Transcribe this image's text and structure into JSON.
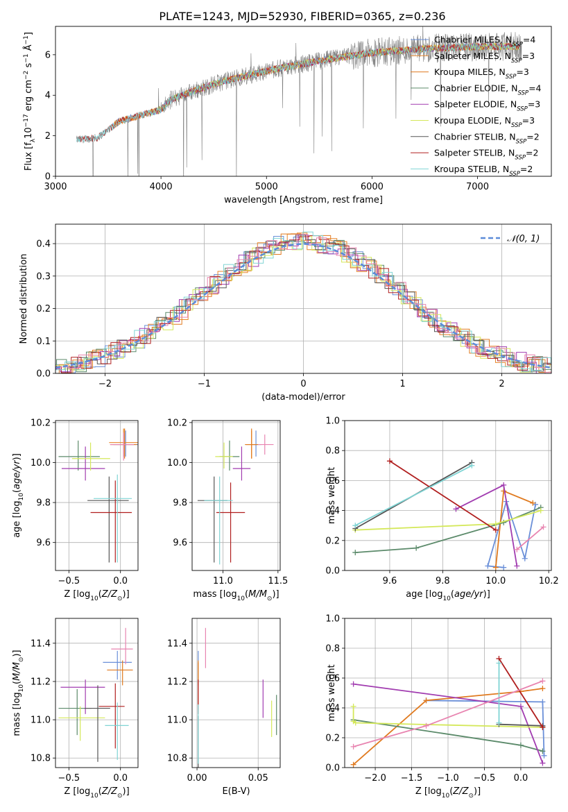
{
  "figure": {
    "title": "PLATE=1243, MJD=52930, FIBERID=0365, z=0.236"
  },
  "colors": {
    "Chabrier MILES": "#6a8fd8",
    "Salpeter MILES": "#e8862a",
    "Kroupa MILES": "#e07a1f",
    "Chabrier ELODIE": "#5b8a6a",
    "Salpeter ELODIE": "#a13cb0",
    "Kroupa ELODIE": "#d4e85a",
    "Chabrier STELIB": "#555555",
    "Salpeter STELIB": "#b01e1e",
    "Kroupa STELIB": "#7fd4d4",
    "pink": "#e884b0",
    "gaussian": "#5b8bd8"
  },
  "chart_data": [
    {
      "id": "spectrum",
      "type": "line",
      "xlabel": "wavelength [Angstrom, rest frame]",
      "ylabel": "Flux [f",
      "xlim": [
        3000,
        7700
      ],
      "ylim": [
        0,
        7.4
      ],
      "xticks": [
        3000,
        4000,
        5000,
        6000,
        7000
      ],
      "yticks": [
        0,
        2,
        4,
        6
      ],
      "legend_position": "top-right",
      "legend": [
        {
          "name": "Chabrier MILES",
          "nssp": "=4"
        },
        {
          "name": "Salpeter MILES",
          "nssp": "=3"
        },
        {
          "name": "Kroupa MILES",
          "nssp": "=3"
        },
        {
          "name": "Chabrier ELODIE",
          "nssp": "=4"
        },
        {
          "name": "Salpeter ELODIE",
          "nssp": "=3"
        },
        {
          "name": "Kroupa ELODIE",
          "nssp": "=3"
        },
        {
          "name": "Chabrier STELIB",
          "nssp": "=2"
        },
        {
          "name": "Salpeter STELIB",
          "nssp": "=2"
        },
        {
          "name": "Kroupa STELIB",
          "nssp": "=2"
        }
      ],
      "continuum": {
        "x": [
          3200,
          3400,
          3600,
          3800,
          4000,
          4100,
          4300,
          4600,
          5000,
          5500,
          6000,
          6500,
          7000,
          7400
        ],
        "y": [
          1.8,
          1.9,
          2.7,
          3.0,
          3.3,
          3.8,
          4.2,
          4.7,
          5.2,
          5.7,
          6.1,
          6.3,
          6.4,
          6.4
        ]
      }
    },
    {
      "id": "residuals",
      "type": "line",
      "xlabel": "(data-model)/error",
      "ylabel": "Normed distribution",
      "xlim": [
        -2.5,
        2.5
      ],
      "ylim": [
        0,
        0.46
      ],
      "xticks": [
        -2,
        -1,
        0,
        1,
        2
      ],
      "yticks": [
        0.0,
        0.1,
        0.2,
        0.3,
        0.4
      ],
      "legend": [
        "𝒩(0, 1)"
      ],
      "legend_position": "top-right",
      "grid": true
    },
    {
      "id": "age_vs_Z",
      "type": "scatter",
      "xlabel": "Z [log",
      "ylabel": "age  [log",
      "xlim": [
        -0.63,
        0.17
      ],
      "ylim": [
        9.46,
        10.21
      ],
      "xticks": [
        -0.5,
        0.0
      ],
      "yticks": [
        9.6,
        9.8,
        10.0,
        10.2
      ],
      "grid": true,
      "points": [
        {
          "c": "Chabrier MILES",
          "x": 0.05,
          "y": 10.09,
          "xerr": [
            0.12,
            0.14
          ],
          "yerr": [
            0.06,
            0.07
          ]
        },
        {
          "c": "Salpeter MILES",
          "x": 0.03,
          "y": 10.1,
          "xerr": [
            0.14,
            0.14
          ],
          "yerr": [
            0.07,
            0.07
          ]
        },
        {
          "c": "Kroupa MILES",
          "x": 0.04,
          "y": 10.09,
          "xerr": [
            0.14,
            0.12
          ],
          "yerr": [
            0.07,
            0.08
          ]
        },
        {
          "c": "Chabrier ELODIE",
          "x": -0.41,
          "y": 10.03,
          "xerr": [
            0.19,
            0.21
          ],
          "yerr": [
            0.07,
            0.08
          ]
        },
        {
          "c": "Salpeter ELODIE",
          "x": -0.34,
          "y": 9.97,
          "xerr": [
            0.23,
            0.19
          ],
          "yerr": [
            0.06,
            0.11
          ]
        },
        {
          "c": "Kroupa ELODIE",
          "x": -0.29,
          "y": 10.02,
          "xerr": [
            0.18,
            0.19
          ],
          "yerr": [
            0.06,
            0.08
          ]
        },
        {
          "c": "Chabrier STELIB",
          "x": -0.11,
          "y": 9.81,
          "xerr": [
            0.21,
            0.19
          ],
          "yerr": [
            0.31,
            0.12
          ]
        },
        {
          "c": "Salpeter STELIB",
          "x": -0.05,
          "y": 9.75,
          "xerr": [
            0.24,
            0.16
          ],
          "yerr": [
            0.25,
            0.16
          ]
        },
        {
          "c": "Kroupa STELIB",
          "x": -0.03,
          "y": 9.82,
          "xerr": [
            0.23,
            0.14
          ],
          "yerr": [
            0.32,
            0.12
          ]
        },
        {
          "c": "pink",
          "x": 0.03,
          "y": 10.09,
          "xerr": [
            0.13,
            0.1
          ],
          "yerr": [
            0.08,
            0.06
          ]
        }
      ]
    },
    {
      "id": "age_vs_mass",
      "type": "scatter",
      "xlabel": "mass [log",
      "ylabel": "",
      "xlim": [
        10.72,
        11.52
      ],
      "ylim": [
        9.46,
        10.21
      ],
      "xticks": [
        11.0,
        11.5
      ],
      "yticks": [
        9.6,
        9.8,
        10.0,
        10.2
      ],
      "grid": true,
      "points": [
        {
          "c": "Chabrier MILES",
          "x": 11.3,
          "y": 10.09,
          "xerr": [
            0.05,
            0.05
          ],
          "yerr": [
            0.06,
            0.07
          ]
        },
        {
          "c": "Salpeter MILES",
          "x": 11.26,
          "y": 10.09,
          "xerr": [
            0.05,
            0.05
          ],
          "yerr": [
            0.07,
            0.07
          ]
        },
        {
          "c": "Kroupa MILES",
          "x": 11.26,
          "y": 10.09,
          "xerr": [
            0.06,
            0.06
          ],
          "yerr": [
            0.07,
            0.08
          ]
        },
        {
          "c": "Chabrier ELODIE",
          "x": 11.06,
          "y": 10.03,
          "xerr": [
            0.09,
            0.09
          ],
          "yerr": [
            0.07,
            0.08
          ]
        },
        {
          "c": "Salpeter ELODIE",
          "x": 11.17,
          "y": 9.97,
          "xerr": [
            0.08,
            0.08
          ],
          "yerr": [
            0.06,
            0.11
          ]
        },
        {
          "c": "Kroupa ELODIE",
          "x": 11.01,
          "y": 10.03,
          "xerr": [
            0.08,
            0.08
          ],
          "yerr": [
            0.06,
            0.07
          ]
        },
        {
          "c": "Chabrier STELIB",
          "x": 10.92,
          "y": 9.81,
          "xerr": [
            0.15,
            0.12
          ],
          "yerr": [
            0.31,
            0.12
          ]
        },
        {
          "c": "Salpeter STELIB",
          "x": 11.07,
          "y": 9.75,
          "xerr": [
            0.13,
            0.13
          ],
          "yerr": [
            0.25,
            0.15
          ]
        },
        {
          "c": "Kroupa STELIB",
          "x": 10.97,
          "y": 9.81,
          "xerr": [
            0.14,
            0.12
          ],
          "yerr": [
            0.32,
            0.12
          ]
        },
        {
          "c": "pink",
          "x": 11.38,
          "y": 10.09,
          "xerr": [
            0.06,
            0.08
          ],
          "yerr": [
            0.05,
            0.05
          ]
        }
      ]
    },
    {
      "id": "massweight_vs_age",
      "type": "line",
      "xlabel": "age  [log",
      "ylabel": "mass weight",
      "xlim": [
        9.43,
        10.21
      ],
      "ylim": [
        0,
        1.0
      ],
      "xticks": [
        9.6,
        9.8,
        10.0,
        10.2
      ],
      "yticks": [
        0.0,
        0.2,
        0.4,
        0.6,
        0.8,
        1.0
      ],
      "grid": true,
      "series": [
        {
          "c": "Chabrier MILES",
          "x": [
            10.03,
            9.97,
            10.04,
            10.11,
            10.15
          ],
          "y": [
            0.02,
            0.03,
            0.46,
            0.08,
            0.44
          ]
        },
        {
          "c": "Kroupa MILES",
          "x": [
            10.0,
            10.03,
            10.14
          ],
          "y": [
            0.02,
            0.53,
            0.45
          ]
        },
        {
          "c": "Chabrier ELODIE",
          "x": [
            9.47,
            9.7,
            10.03,
            10.17
          ],
          "y": [
            0.12,
            0.15,
            0.32,
            0.42
          ]
        },
        {
          "c": "Salpeter ELODIE",
          "x": [
            9.85,
            10.03,
            10.08
          ],
          "y": [
            0.41,
            0.57,
            0.03
          ]
        },
        {
          "c": "Kroupa ELODIE",
          "x": [
            9.47,
            10.0,
            10.17
          ],
          "y": [
            0.27,
            0.31,
            0.4
          ]
        },
        {
          "c": "Chabrier STELIB",
          "x": [
            9.47,
            9.91
          ],
          "y": [
            0.28,
            0.72
          ]
        },
        {
          "c": "Salpeter STELIB",
          "x": [
            9.6,
            10.0
          ],
          "y": [
            0.73,
            0.27
          ]
        },
        {
          "c": "Kroupa STELIB",
          "x": [
            9.47,
            9.91
          ],
          "y": [
            0.3,
            0.7
          ]
        },
        {
          "c": "pink",
          "x": [
            10.08,
            10.18
          ],
          "y": [
            0.14,
            0.29
          ]
        }
      ]
    },
    {
      "id": "mass_vs_Z",
      "type": "scatter",
      "xlabel": "Z [log",
      "ylabel": "mass [log",
      "xlim": [
        -0.63,
        0.17
      ],
      "ylim": [
        10.75,
        11.53
      ],
      "xticks": [
        -0.5,
        0.0
      ],
      "yticks": [
        10.8,
        11.0,
        11.2,
        11.4
      ],
      "grid": true,
      "points": [
        {
          "c": "Chabrier MILES",
          "x": -0.03,
          "y": 11.3,
          "xerr": [
            0.14,
            0.14
          ],
          "yerr": [
            0.09,
            0.06
          ]
        },
        {
          "c": "Kroupa MILES",
          "x": 0.02,
          "y": 11.26,
          "xerr": [
            0.15,
            0.1
          ],
          "yerr": [
            0.08,
            0.05
          ]
        },
        {
          "c": "Chabrier ELODIE",
          "x": -0.42,
          "y": 11.06,
          "xerr": [
            0.18,
            0.14
          ],
          "yerr": [
            0.14,
            0.1
          ]
        },
        {
          "c": "Salpeter ELODIE",
          "x": -0.34,
          "y": 11.17,
          "xerr": [
            0.24,
            0.19
          ],
          "yerr": [
            0.14,
            0.04
          ]
        },
        {
          "c": "Kroupa ELODIE",
          "x": -0.39,
          "y": 11.01,
          "xerr": [
            0.21,
            0.24
          ],
          "yerr": [
            0.12,
            0.06
          ]
        },
        {
          "c": "Chabrier STELIB",
          "x": -0.22,
          "y": 11.06,
          "xerr": [
            0.13,
            0.12
          ],
          "yerr": [
            0.28,
            0.12
          ]
        },
        {
          "c": "Salpeter STELIB",
          "x": -0.05,
          "y": 11.07,
          "xerr": [
            0.16,
            0.09
          ],
          "yerr": [
            0.22,
            0.12
          ]
        },
        {
          "c": "Kroupa STELIB",
          "x": -0.03,
          "y": 10.97,
          "xerr": [
            0.12,
            0.11
          ],
          "yerr": [
            0.18,
            0.12
          ]
        },
        {
          "c": "pink",
          "x": 0.05,
          "y": 11.37,
          "xerr": [
            0.14,
            0.07
          ],
          "yerr": [
            0.08,
            0.11
          ]
        }
      ]
    },
    {
      "id": "mass_vs_ebv",
      "type": "scatter",
      "xlabel": "E(B-V)",
      "ylabel": "",
      "xlim": [
        -0.004,
        0.068
      ],
      "ylim": [
        10.75,
        11.53
      ],
      "xticks": [
        0.0,
        0.05
      ],
      "yticks": [
        10.8,
        11.0,
        11.2,
        11.4
      ],
      "grid": true,
      "points": [
        {
          "c": "Chabrier MILES",
          "x": 0.001,
          "y": 11.3,
          "yerr": [
            0.09,
            0.06
          ]
        },
        {
          "c": "Salpeter MILES",
          "x": 0.001,
          "y": 11.26,
          "yerr": [
            0.08,
            0.05
          ]
        },
        {
          "c": "Kroupa MILES",
          "x": 0.001,
          "y": 11.2,
          "yerr": [
            0.12,
            0.1
          ]
        },
        {
          "c": "Chabrier ELODIE",
          "x": 0.065,
          "y": 11.05,
          "yerr": [
            0.13,
            0.08
          ]
        },
        {
          "c": "Salpeter ELODIE",
          "x": 0.054,
          "y": 11.11,
          "yerr": [
            0.1,
            0.1
          ]
        },
        {
          "c": "Kroupa ELODIE",
          "x": 0.061,
          "y": 11.01,
          "yerr": [
            0.1,
            0.09
          ]
        },
        {
          "c": "Chabrier STELIB",
          "x": 0.001,
          "y": 10.92,
          "yerr": [
            0.18,
            0.1
          ]
        },
        {
          "c": "Salpeter STELIB",
          "x": 0.001,
          "y": 11.13,
          "yerr": [
            0.1,
            0.08
          ]
        },
        {
          "c": "Kroupa STELIB",
          "x": 0.001,
          "y": 10.95,
          "yerr": [
            0.18,
            0.13
          ]
        },
        {
          "c": "pink",
          "x": 0.007,
          "y": 11.37,
          "yerr": [
            0.1,
            0.11
          ]
        }
      ]
    },
    {
      "id": "massweight_vs_Z",
      "type": "line",
      "xlabel": "Z [log",
      "ylabel": "mass weight",
      "xlim": [
        -2.42,
        0.42
      ],
      "ylim": [
        0,
        1.0
      ],
      "xticks": [
        -2.0,
        -1.5,
        -1.0,
        -0.5,
        0.0
      ],
      "yticks": [
        0.0,
        0.2,
        0.4,
        0.6,
        0.8,
        1.0
      ],
      "grid": true,
      "series": [
        {
          "c": "Chabrier MILES",
          "x": [
            -1.3,
            0.3,
            0.32
          ],
          "y": [
            0.45,
            0.44,
            0.08
          ]
        },
        {
          "c": "Kroupa MILES",
          "x": [
            -2.3,
            -1.3,
            0.0,
            0.3
          ],
          "y": [
            0.02,
            0.45,
            0.51,
            0.53
          ]
        },
        {
          "c": "Chabrier ELODIE",
          "x": [
            -2.3,
            0.0,
            0.3
          ],
          "y": [
            0.32,
            0.15,
            0.11
          ]
        },
        {
          "c": "Salpeter ELODIE",
          "x": [
            -2.3,
            0.0,
            0.3
          ],
          "y": [
            0.56,
            0.41,
            0.03
          ]
        },
        {
          "c": "Kroupa ELODIE",
          "x": [
            -2.3,
            -2.3,
            -2.27,
            0.3
          ],
          "y": [
            0.41,
            0.31,
            0.3,
            0.27
          ]
        },
        {
          "c": "Chabrier STELIB",
          "x": [
            -0.3,
            0.3
          ],
          "y": [
            0.29,
            0.28
          ]
        },
        {
          "c": "Salpeter STELIB",
          "x": [
            -0.3,
            0.3
          ],
          "y": [
            0.73,
            0.27
          ]
        },
        {
          "c": "Kroupa STELIB",
          "x": [
            -0.3,
            -0.3
          ],
          "y": [
            0.7,
            0.3
          ]
        },
        {
          "c": "pink",
          "x": [
            -2.3,
            -1.3,
            0.3
          ],
          "y": [
            0.14,
            0.28,
            0.58
          ]
        }
      ]
    }
  ]
}
